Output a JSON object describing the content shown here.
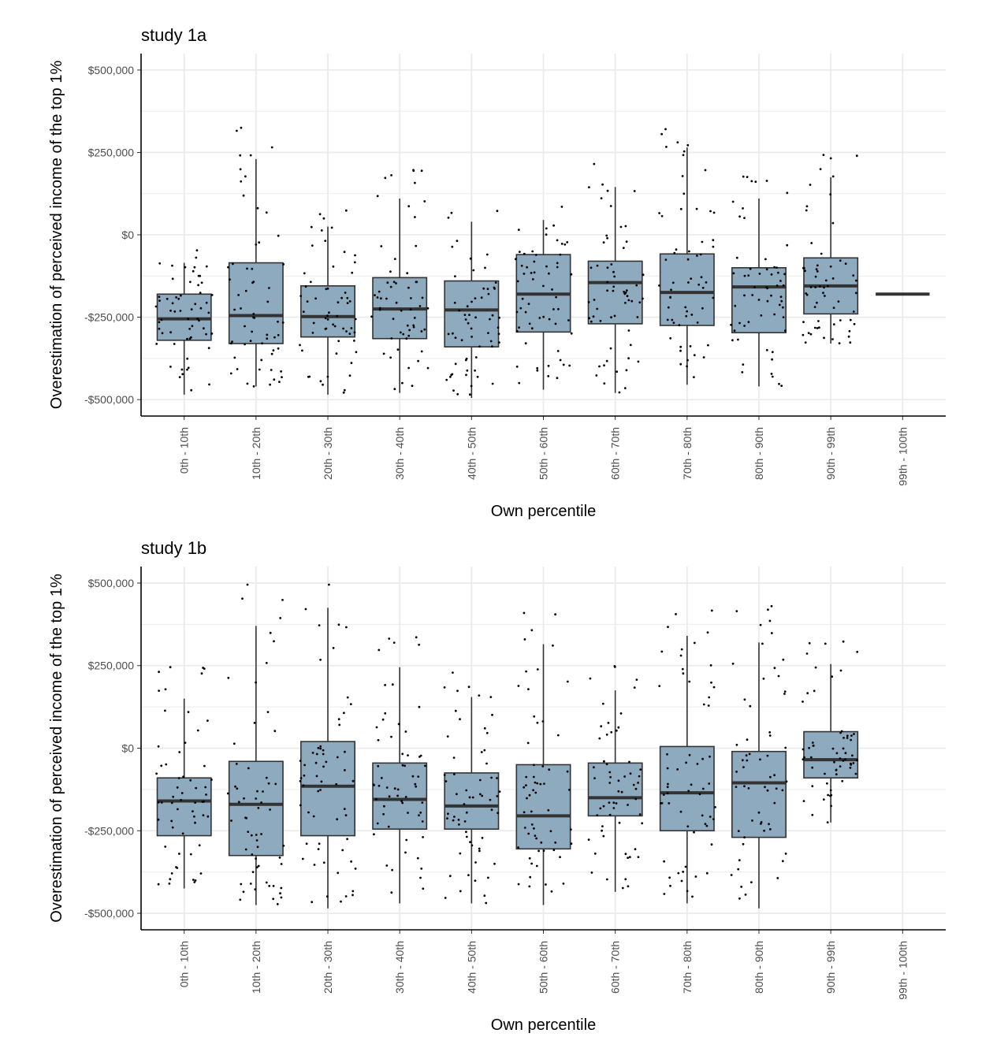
{
  "figure": {
    "xlabel": "Own percentile",
    "ylabel": "Overestimation of perceived income of the top 1%"
  },
  "colors": {
    "box_fill": "#8eaabf",
    "box_stroke": "#333333",
    "grid": "#ebebeb",
    "point": "#000000"
  },
  "chart_data": [
    {
      "type": "box",
      "title": "study 1a",
      "xlabel": "Own percentile",
      "ylabel": "Overestimation of perceived income of the top 1%",
      "categories": [
        "0th - 10th",
        "10th - 20th",
        "20th - 30th",
        "30th - 40th",
        "40th - 50th",
        "50th - 60th",
        "60th - 70th",
        "70th - 80th",
        "80th - 90th",
        "90th - 99th",
        "99th - 100th"
      ],
      "ylim": [
        -550000,
        550000
      ],
      "yticks": [
        -500000,
        -250000,
        0,
        250000,
        500000
      ],
      "ytick_labels": [
        "-$500,000",
        "-$250,000",
        "$0",
        "$250,000",
        "$500,000"
      ],
      "boxes": [
        {
          "low": -485000,
          "q1": -320000,
          "median": -255000,
          "q3": -180000,
          "high": -85000
        },
        {
          "low": -460000,
          "q1": -330000,
          "median": -245000,
          "q3": -85000,
          "high": 230000
        },
        {
          "low": -485000,
          "q1": -310000,
          "median": -248000,
          "q3": -155000,
          "high": 25000
        },
        {
          "low": -480000,
          "q1": -315000,
          "median": -225000,
          "q3": -130000,
          "high": 110000
        },
        {
          "low": -495000,
          "q1": -340000,
          "median": -228000,
          "q3": -140000,
          "high": 40000
        },
        {
          "low": -470000,
          "q1": -295000,
          "median": -180000,
          "q3": -60000,
          "high": 45000
        },
        {
          "low": -480000,
          "q1": -270000,
          "median": -145000,
          "q3": -80000,
          "high": 145000
        },
        {
          "low": -455000,
          "q1": -275000,
          "median": -175000,
          "q3": -58000,
          "high": 265000
        },
        {
          "low": -460000,
          "q1": -297000,
          "median": -158000,
          "q3": -100000,
          "high": 110000
        },
        {
          "low": -330000,
          "q1": -240000,
          "median": -155000,
          "q3": -70000,
          "high": 175000
        },
        {
          "low": -180000,
          "q1": -180000,
          "median": -180000,
          "q3": -180000,
          "high": -180000
        }
      ]
    },
    {
      "type": "box",
      "title": "study 1b",
      "xlabel": "Own percentile",
      "ylabel": "Overestimation of perceived income of the top 1%",
      "categories": [
        "0th - 10th",
        "10th - 20th",
        "20th - 30th",
        "30th - 40th",
        "40th - 50th",
        "50th - 60th",
        "60th - 70th",
        "70th - 80th",
        "80th - 90th",
        "90th - 99th",
        "99th - 100th"
      ],
      "ylim": [
        -550000,
        550000
      ],
      "yticks": [
        -500000,
        -250000,
        0,
        250000,
        500000
      ],
      "ytick_labels": [
        "-$500,000",
        "-$250,000",
        "$0",
        "$250,000",
        "$500,000"
      ],
      "boxes": [
        {
          "low": -425000,
          "q1": -265000,
          "median": -160000,
          "q3": -90000,
          "high": 150000
        },
        {
          "low": -475000,
          "q1": -325000,
          "median": -170000,
          "q3": -40000,
          "high": 370000
        },
        {
          "low": -485000,
          "q1": -265000,
          "median": -115000,
          "q3": 20000,
          "high": 425000
        },
        {
          "low": -470000,
          "q1": -245000,
          "median": -155000,
          "q3": -45000,
          "high": 245000
        },
        {
          "low": -470000,
          "q1": -245000,
          "median": -175000,
          "q3": -75000,
          "high": 155000
        },
        {
          "low": -475000,
          "q1": -305000,
          "median": -205000,
          "q3": -50000,
          "high": 315000
        },
        {
          "low": -435000,
          "q1": -205000,
          "median": -150000,
          "q3": -45000,
          "high": 175000
        },
        {
          "low": -470000,
          "q1": -250000,
          "median": -135000,
          "q3": 5000,
          "high": 340000
        },
        {
          "low": -485000,
          "q1": -270000,
          "median": -105000,
          "q3": -10000,
          "high": 320000
        },
        {
          "low": -225000,
          "q1": -90000,
          "median": -35000,
          "q3": 50000,
          "high": 255000
        },
        null
      ]
    }
  ]
}
